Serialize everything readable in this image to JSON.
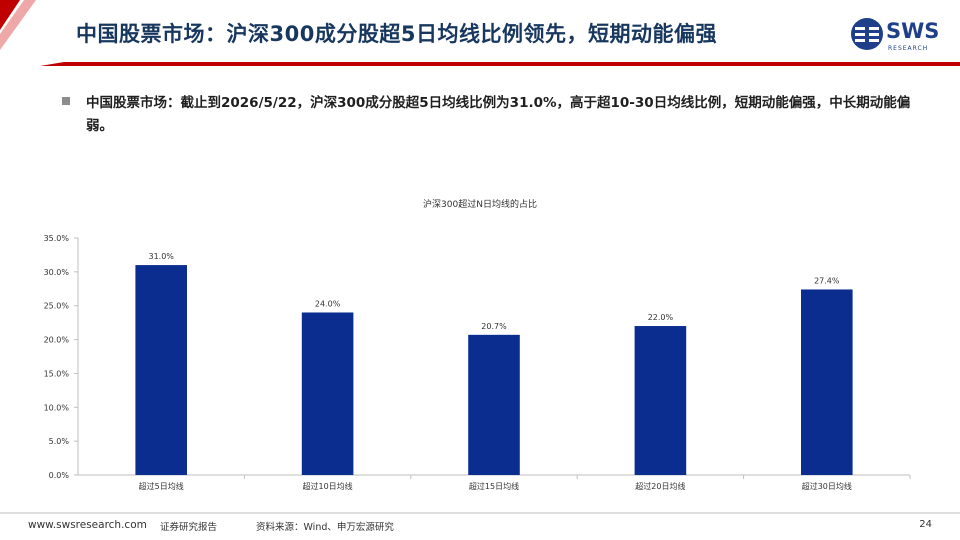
{
  "header": {
    "title": "中国股票市场：沪深300成分股超5日均线比例领先，短期动能偏强",
    "logo_text": "SWS",
    "logo_subtext": "RESEARCH"
  },
  "summary": {
    "text": "中国股票市场：截止到2026/5/22，沪深300成分股超5日均线比例为31.0%，高于超10-30日均线比例，短期动能偏强，中长期动能偏弱。"
  },
  "chart_data": {
    "type": "bar",
    "title": "沪深300超过N日均线的占比",
    "categories": [
      "超过5日均线",
      "超过10日均线",
      "超过15日均线",
      "超过20日均线",
      "超过30日均线"
    ],
    "values": [
      31.0,
      24.0,
      20.7,
      22.0,
      27.4
    ],
    "value_labels": [
      "31.0%",
      "24.0%",
      "20.7%",
      "22.0%",
      "27.4%"
    ],
    "ylim": [
      0,
      35
    ],
    "yticks": [
      "0.0%",
      "5.0%",
      "10.0%",
      "15.0%",
      "20.0%",
      "25.0%",
      "30.0%",
      "35.0%"
    ],
    "xlabel": "",
    "ylabel": "",
    "grid": false,
    "bar_color": "#0a2d8f"
  },
  "footer": {
    "site": "www.swsresearch.com",
    "brand": "证券研究报告",
    "source": "资料来源：Wind、申万宏源研究",
    "page": "24"
  },
  "colors": {
    "accent_red": "#c00000",
    "title_navy": "#17375e",
    "bar": "#0a2d8f"
  }
}
